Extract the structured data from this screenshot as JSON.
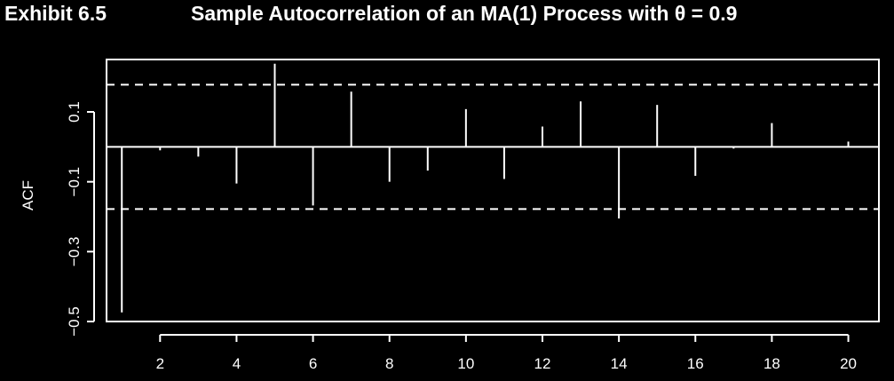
{
  "header": {
    "exhibit": "Exhibit 6.5",
    "title": "Sample Autocorrelation of an MA(1) Process with θ = 0.9"
  },
  "chart_data": {
    "type": "bar",
    "title": "Sample Autocorrelation of an MA(1) Process with θ = 0.9",
    "xlabel": "",
    "ylabel": "ACF",
    "x": [
      1,
      2,
      3,
      4,
      5,
      6,
      7,
      8,
      9,
      10,
      11,
      12,
      13,
      14,
      15,
      16,
      17,
      18,
      19,
      20
    ],
    "values": [
      -0.474,
      -0.01,
      -0.028,
      -0.105,
      0.238,
      -0.168,
      0.158,
      -0.1,
      -0.068,
      0.108,
      -0.092,
      0.058,
      0.13,
      -0.205,
      0.12,
      -0.083,
      -0.005,
      0.068,
      0.0,
      0.015
    ],
    "confidence_bound": 0.178,
    "xlim": [
      0.6,
      20.8
    ],
    "ylim": [
      -0.5,
      0.25
    ],
    "xticks": [
      "2",
      "4",
      "6",
      "8",
      "10",
      "12",
      "14",
      "16",
      "18",
      "20"
    ],
    "yticks": [
      "-0.5",
      "-0.3",
      "-0.1",
      "0.1"
    ],
    "grid": false,
    "colors": {
      "background": "#000000",
      "foreground": "#ffffff"
    }
  }
}
